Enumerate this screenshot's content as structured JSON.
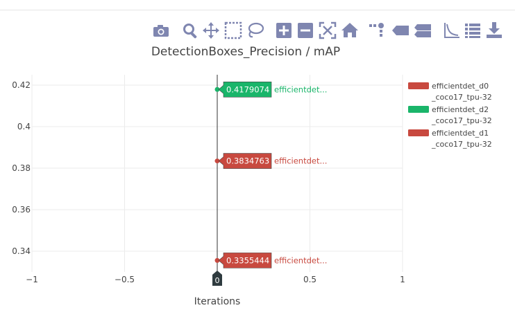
{
  "modebar": {
    "buttons": [
      {
        "name": "camera-icon",
        "title": "Download plot as a png"
      },
      {
        "name": "zoom-icon",
        "title": "Zoom"
      },
      {
        "name": "pan-icon",
        "title": "Pan"
      },
      {
        "name": "box-select-icon",
        "title": "Box Select"
      },
      {
        "name": "lasso-select-icon",
        "title": "Lasso Select"
      },
      {
        "name": "zoom-in-icon",
        "title": "Zoom in"
      },
      {
        "name": "zoom-out-icon",
        "title": "Zoom out"
      },
      {
        "name": "autoscale-icon",
        "title": "Autoscale"
      },
      {
        "name": "reset-axes-icon",
        "title": "Reset axes"
      },
      {
        "name": "spike-lines-icon",
        "title": "Toggle Spike Lines"
      },
      {
        "name": "hover-closest-icon",
        "title": "Show closest data on hover"
      },
      {
        "name": "hover-compare-icon",
        "title": "Compare data on hover"
      },
      {
        "name": "axis-scale-icon",
        "title": "Toggle log scale"
      },
      {
        "name": "list-icon",
        "title": "Toggle legend"
      },
      {
        "name": "download-icon",
        "title": "Download data"
      }
    ],
    "color": "#7f86b0"
  },
  "chart_data": {
    "type": "scatter",
    "title": "DetectionBoxes_Precision / mAP",
    "xlabel": "Iterations",
    "ylabel": "",
    "xlim": [
      -1,
      1
    ],
    "ylim": [
      0.33,
      0.425
    ],
    "xticks": [
      -1,
      -0.5,
      0,
      0.5,
      1
    ],
    "xtick_labels": [
      "−1",
      "−0.5",
      "",
      "0.5",
      "1"
    ],
    "yticks": [
      0.34,
      0.36,
      0.38,
      0.4,
      0.42
    ],
    "ytick_labels": [
      "0.34",
      "0.36",
      "0.38",
      "0.4",
      "0.42"
    ],
    "grid": true,
    "legend_position": "right",
    "series": [
      {
        "name": "efficientdet_d0_coco17_tpu-32",
        "legend_lines": [
          "efficientdet_d0",
          "_coco17_tpu-32"
        ],
        "color": "#c8493f",
        "x": [
          0
        ],
        "y": [
          0.3355444
        ],
        "hover_value": "0.3355444",
        "hover_name": "efficientdet..."
      },
      {
        "name": "efficientdet_d2_coco17_tpu-32",
        "legend_lines": [
          "efficientdet_d2",
          "_coco17_tpu-32"
        ],
        "color": "#1ab56a",
        "x": [
          0
        ],
        "y": [
          0.4179074
        ],
        "hover_value": "0.4179074",
        "hover_name": "efficientdet..."
      },
      {
        "name": "efficientdet_d1_coco17_tpu-32",
        "legend_lines": [
          "efficientdet_d1",
          "_coco17_tpu-32"
        ],
        "color": "#c8493f",
        "x": [
          0
        ],
        "y": [
          0.3834763
        ],
        "hover_value": "0.3834763",
        "hover_name": "efficientdet..."
      }
    ],
    "spike_x_label": "0"
  }
}
